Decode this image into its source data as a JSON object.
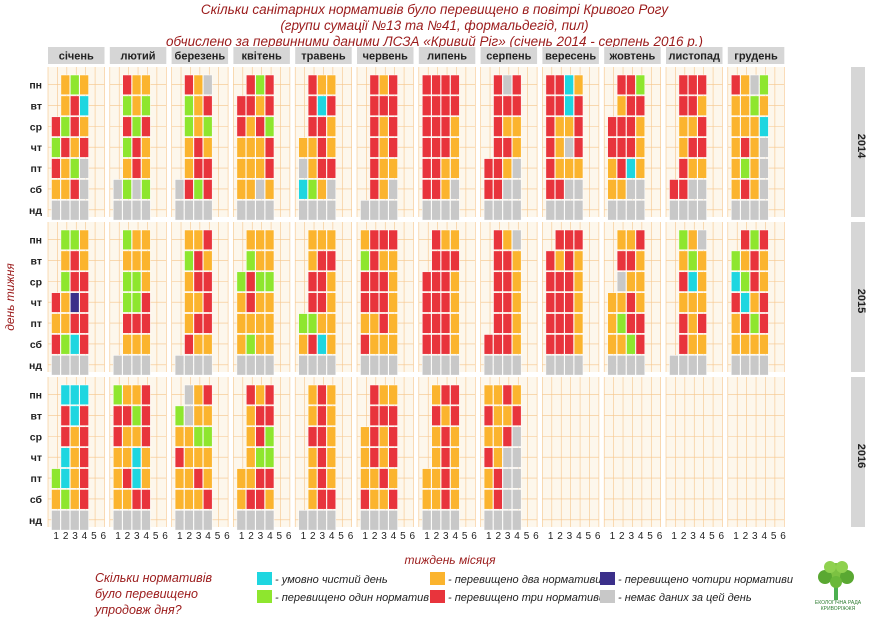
{
  "title": {
    "line1": "Скільки санітарних нормативів було перевищено в повітрі Кривого Рогу",
    "line2": "(групи сумації №13 та №41, формальдегід, пил)",
    "line3": "обчислено за первинними даними ЛСЗА «Кривий Ріг» (січень 2014 - серпень 2016 р.)"
  },
  "chart_data": {
    "type": "heatmap",
    "xlabel": "тиждень місяця",
    "ylabel": "день тижня",
    "x_ticks": [
      "1",
      "2",
      "3",
      "4",
      "5",
      "6"
    ],
    "y_ticks": [
      "пн",
      "вт",
      "ср",
      "чт",
      "пт",
      "сб",
      "нд"
    ],
    "months": [
      "січень",
      "лютий",
      "березень",
      "квітень",
      "травень",
      "червень",
      "липень",
      "серпень",
      "вересень",
      "жовтень",
      "листопад",
      "грудень"
    ],
    "years": [
      "2014",
      "2015",
      "2016"
    ],
    "value_codes": {
      "0": "умовно чистий день",
      "1": "перевищено один норматив",
      "2": "перевищено два нормативи",
      "3": "перевищено три нормативи",
      "4": "перевищено чотири нормативи",
      "9": "немає даних за цей день"
    },
    "colors": {
      "0": "#1ed6e0",
      "1": "#8ee62e",
      "2": "#fbb42e",
      "3": "#e8343c",
      "4": "#3b2f8a",
      "9": "#c8c8c8"
    },
    "panel_bg": "#fdf7ec",
    "grid_color": "#f6c58a",
    "strip_bg": "#d6d6d6",
    "grid": {
      "2014": [
        [
          "0212",
          "2322",
          "1329",
          "3313",
          "3322",
          "2323",
          "3333",
          "3393",
          "3302",
          "2331",
          "2333",
          "3291"
        ],
        [
          "9230",
          "9121",
          "1123",
          "3323",
          "2303",
          "2333",
          "3333",
          "3333",
          "3303",
          "3233",
          "2332",
          "2212"
        ],
        [
          "3132",
          "9313",
          "2121",
          "3231",
          "2332",
          "3323",
          "3332",
          "3322",
          "3223",
          "3332",
          "3223",
          "2220"
        ],
        [
          "1323",
          "9132",
          "2232",
          "2223",
          "2232",
          "3323",
          "3332",
          "3332",
          "3293",
          "3332",
          "3233",
          "2329"
        ],
        [
          "3219",
          "9232",
          "2233",
          "2223",
          "9233",
          "3322",
          "3322",
          "3329",
          "3222",
          "2302",
          "3322",
          "2129"
        ],
        [
          "2239",
          "9191",
          "9313",
          "2292",
          "0129",
          "2329",
          "3329",
          "3399",
          "3399",
          "2299",
          "3399",
          "2329"
        ],
        [
          "9999",
          "9999",
          "9999",
          "9999",
          "9999",
          "9999",
          "9999",
          "9999",
          "9999",
          "9999",
          "9999",
          "9999"
        ]
      ],
      "2015": [
        [
          "1112",
          "1122",
          "1223",
          "2222",
          "2222",
          "2333",
          "3322",
          "2329",
          "2333",
          "1223",
          "2129",
          "2313"
        ],
        [
          "3232",
          "2222",
          "1132",
          "3122",
          "2233",
          "1322",
          "2333",
          "3332",
          "3232",
          "1332",
          "1212",
          "1232"
        ],
        [
          "9133",
          "1112",
          "2233",
          "1311",
          "3332",
          "3332",
          "3332",
          "3332",
          "3332",
          "2922",
          "2302",
          "0132"
        ],
        [
          "3243",
          "2113",
          "2223",
          "2322",
          "3332",
          "3332",
          "3332",
          "3332",
          "3332",
          "2232",
          "2222",
          "3023"
        ],
        [
          "2233",
          "2333",
          "3233",
          "2222",
          "1122",
          "2232",
          "3332",
          "3332",
          "3332",
          "2133",
          "2323",
          "2313"
        ],
        [
          "3103",
          "2222",
          "2322",
          "2122",
          "2302",
          "3222",
          "3332",
          "3332",
          "3332",
          "2213",
          "3322",
          "2222"
        ],
        [
          "9999",
          "9999",
          "9999",
          "9999",
          "9999",
          "9999",
          "9999",
          "9999",
          "9999",
          "9999",
          "9999",
          "9999"
        ]
      ],
      "2016": [
        [
          "1000",
          "1223",
          "9923",
          "9323",
          "2232",
          "2322",
          "3233",
          "2232",
          "",
          "",
          "",
          ""
        ],
        [
          "2303",
          "3313",
          "1922",
          "2233",
          "2232",
          "2333",
          "2323",
          "3223",
          "",
          "",
          "",
          ""
        ],
        [
          "2323",
          "3223",
          "2211",
          "3231",
          "2332",
          "2323",
          "3232",
          "2239",
          "",
          "",
          "",
          ""
        ],
        [
          "2023",
          "2202",
          "3222",
          "2211",
          "2232",
          "2323",
          "2232",
          "3299",
          "",
          "",
          "",
          ""
        ],
        [
          "1023",
          "2302",
          "2232",
          "2233",
          "3232",
          "2232",
          "2232",
          "2399",
          "",
          "",
          "",
          ""
        ],
        [
          "2123",
          "2233",
          "2223",
          "2332",
          "2233",
          "3223",
          "2232",
          "2399",
          "",
          "",
          "",
          ""
        ],
        [
          "9999",
          "9999",
          "9999",
          "9999",
          "9999",
          "9999",
          "9999",
          "9999",
          "",
          "",
          "",
          ""
        ]
      ]
    },
    "start_cols": {
      "2014": [
        3,
        6,
        6,
        2,
        4,
        7,
        1,
        5,
        1,
        3,
        6,
        1
      ],
      "2015": [
        4,
        7,
        7,
        3,
        5,
        1,
        3,
        6,
        2,
        4,
        7,
        2
      ],
      "2016": [
        5,
        1,
        2,
        5,
        7,
        3,
        5,
        1,
        0,
        0,
        0,
        0
      ]
    }
  },
  "legend": {
    "title": "Скільки нормативів було перевищено упродовж дня?",
    "items": [
      {
        "code": "0",
        "label": "- умовно чистий день"
      },
      {
        "code": "1",
        "label": "- перевищено один норматив"
      },
      {
        "code": "2",
        "label": "- перевищено два нормативи"
      },
      {
        "code": "3",
        "label": "- перевищено три нормативи"
      },
      {
        "code": "4",
        "label": "- перевищено чотири нормативи"
      },
      {
        "code": "9",
        "label": "- немає даних за цей день"
      }
    ]
  },
  "logo": {
    "icon": "tree-icon",
    "caption": "ЕКОЛОГІЧНА РАДА КРИВОРІЖЖЯ"
  }
}
